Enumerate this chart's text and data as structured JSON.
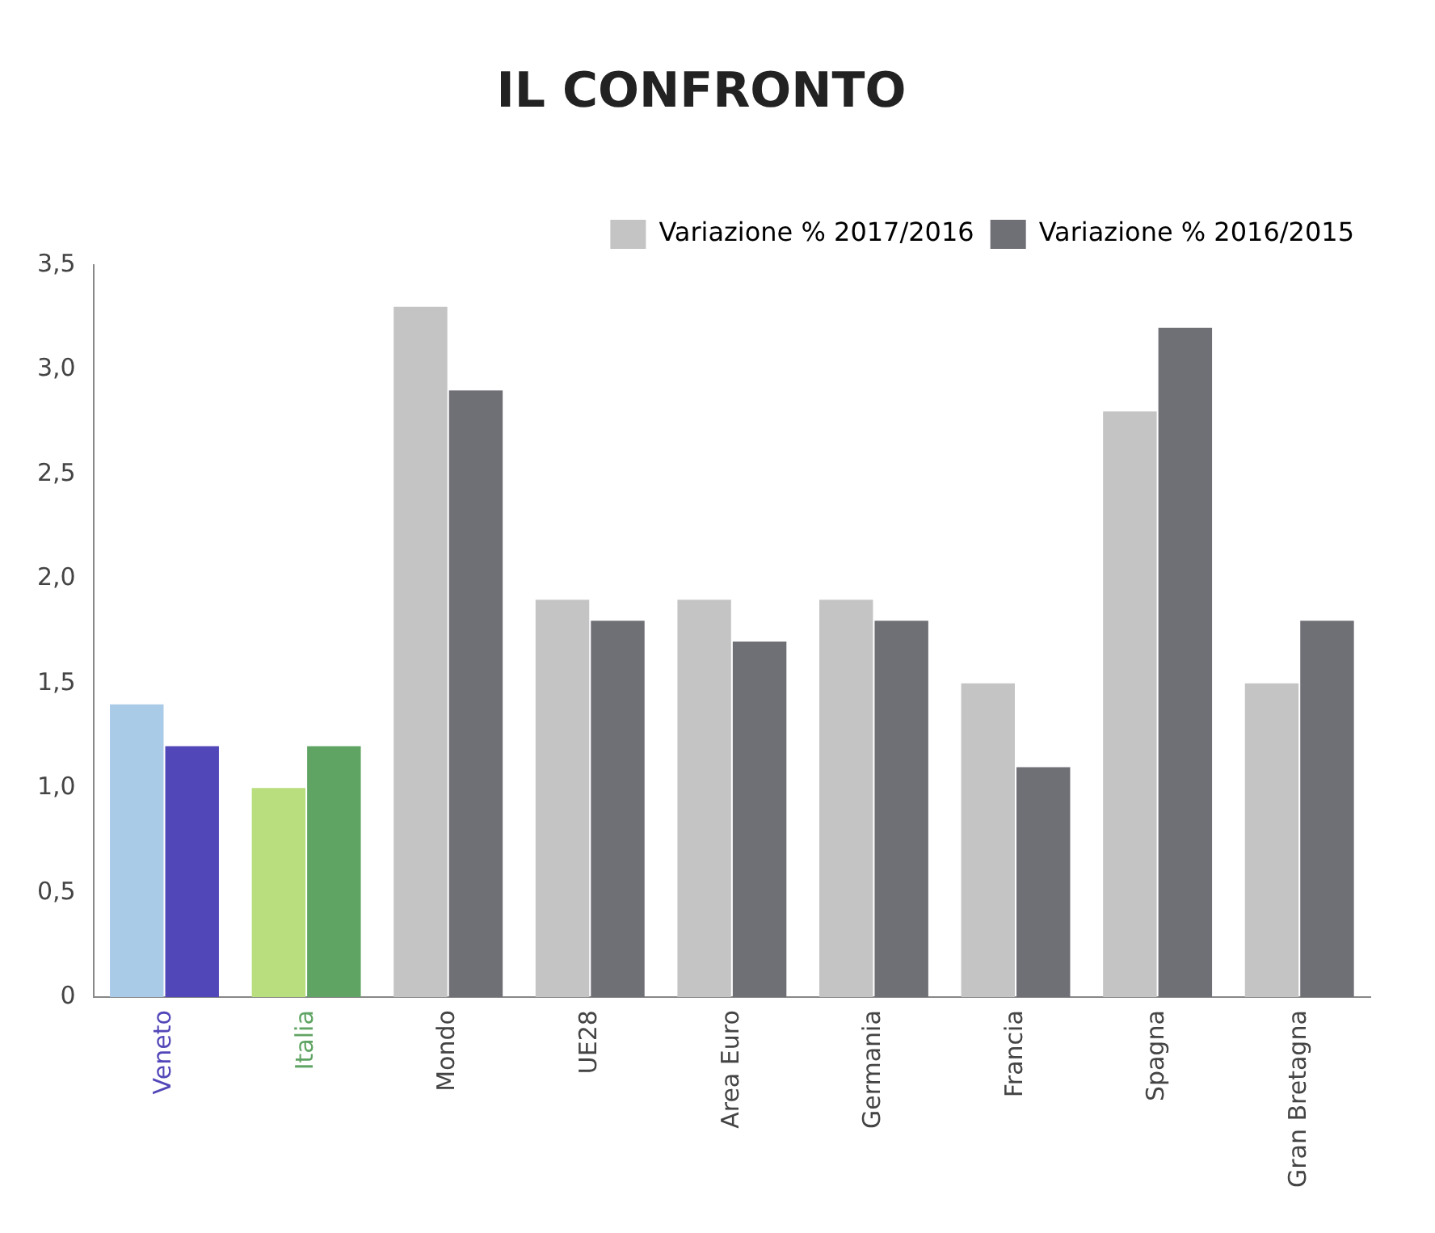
{
  "chart_data": {
    "type": "bar",
    "title": "IL CONFRONTO",
    "categories": [
      "Veneto",
      "Italia",
      "Mondo",
      "UE28",
      "Area Euro",
      "Germania",
      "Francia",
      "Spagna",
      "Gran Bretagna"
    ],
    "series": [
      {
        "name": "Variazione % 2017/2016",
        "color": "#c4c4c4",
        "colors": [
          "#a9cbe8",
          "#b9de7e",
          "#c4c4c4",
          "#c4c4c4",
          "#c4c4c4",
          "#c4c4c4",
          "#c4c4c4",
          "#c4c4c4",
          "#c4c4c4"
        ],
        "values": [
          1.4,
          1.0,
          3.3,
          1.9,
          1.9,
          1.9,
          1.5,
          2.8,
          1.5
        ]
      },
      {
        "name": "Variazione % 2016/2015",
        "color": "#6f6f76",
        "colors": [
          "#5247b8",
          "#5fa463",
          "#6f6f76",
          "#6f6f76",
          "#6f6f76",
          "#6f6f76",
          "#6f6f76",
          "#6f6f76",
          "#6f6f76"
        ],
        "values": [
          1.2,
          1.2,
          2.9,
          1.8,
          1.7,
          1.8,
          1.1,
          3.2,
          1.8
        ]
      }
    ],
    "ylim": [
      0,
      3.5
    ],
    "yticks": [
      0,
      {
        "value": 0.5,
        "label": "0,5"
      },
      {
        "value": 1,
        "label": "1,0"
      },
      {
        "value": 1.5,
        "label": "1,5"
      },
      {
        "value": 2,
        "label": "2,0"
      },
      {
        "value": 2.5,
        "label": "2,5"
      },
      {
        "value": 3,
        "label": "3,0"
      },
      {
        "value": 3.5,
        "label": "3,5"
      }
    ],
    "grid": false,
    "legend": "top right"
  }
}
